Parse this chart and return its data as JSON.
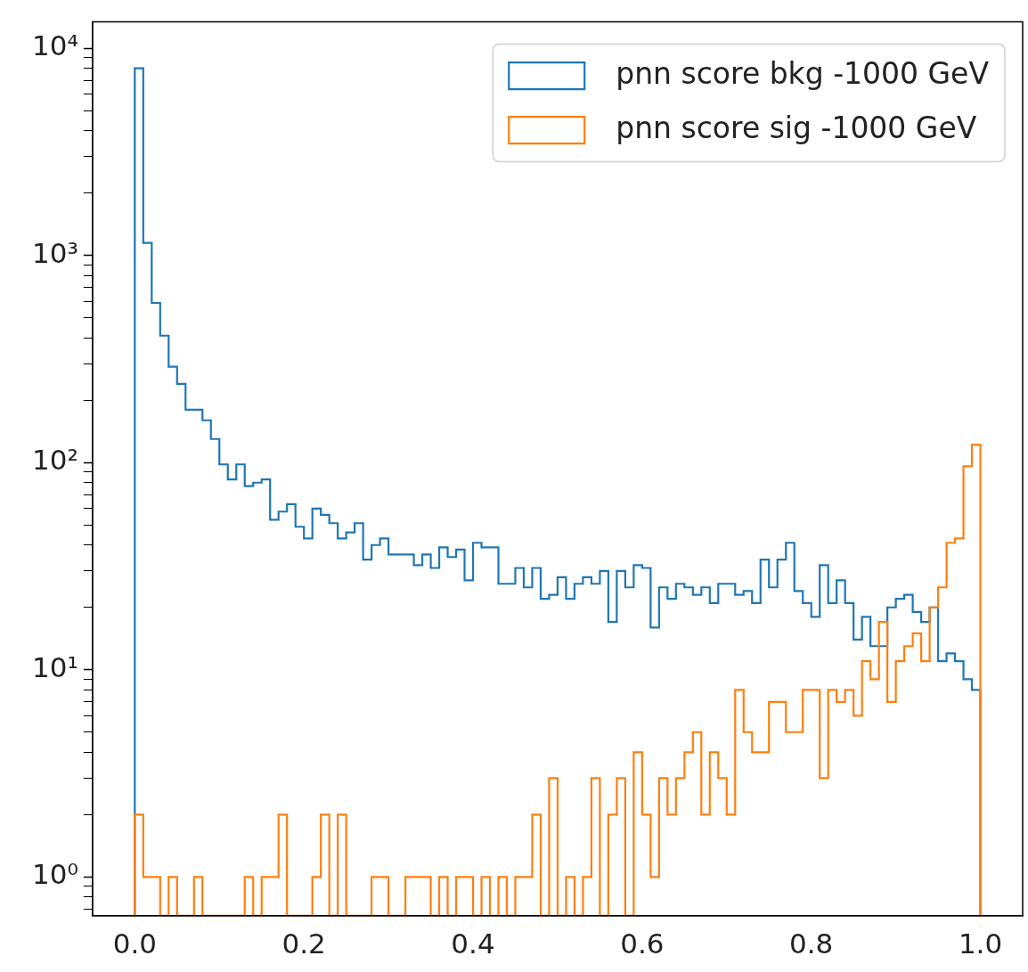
{
  "chart_data": {
    "type": "histogram",
    "bins": [
      0,
      0.01,
      0.02,
      0.03,
      0.04,
      0.05,
      0.06,
      0.07,
      0.08,
      0.09,
      0.1,
      0.11,
      0.12,
      0.13,
      0.14,
      0.15,
      0.16,
      0.17,
      0.18,
      0.19,
      0.2,
      0.21,
      0.22,
      0.23,
      0.24,
      0.25,
      0.26,
      0.27,
      0.28,
      0.29,
      0.3,
      0.31,
      0.32,
      0.33,
      0.34,
      0.35,
      0.36,
      0.37,
      0.38,
      0.39,
      0.4,
      0.41,
      0.42,
      0.43,
      0.44,
      0.45,
      0.46,
      0.47,
      0.48,
      0.49,
      0.5,
      0.51,
      0.52,
      0.53,
      0.54,
      0.55,
      0.56,
      0.57,
      0.58,
      0.59,
      0.6,
      0.61,
      0.62,
      0.63,
      0.64,
      0.65,
      0.66,
      0.67,
      0.68,
      0.69,
      0.7,
      0.71,
      0.72,
      0.73,
      0.74,
      0.75,
      0.76,
      0.77,
      0.78,
      0.79,
      0.8,
      0.81,
      0.82,
      0.83,
      0.84,
      0.85,
      0.86,
      0.87,
      0.88,
      0.89,
      0.9,
      0.91,
      0.92,
      0.93,
      0.94,
      0.95,
      0.96,
      0.97,
      0.98,
      0.99,
      1
    ],
    "series": [
      {
        "name": "pnn score bkg -1000 GeV",
        "color": "#1f77b4",
        "values": [
          8000,
          1150,
          590,
          410,
          290,
          240,
          180,
          180,
          160,
          130,
          98,
          83,
          98,
          77,
          80,
          83,
          53,
          58,
          63,
          49,
          43,
          60,
          56,
          51,
          43,
          46,
          51,
          34,
          40,
          43,
          36,
          36,
          36,
          32,
          36,
          31,
          39,
          35,
          38,
          27,
          41,
          39,
          39,
          26,
          26,
          31,
          25,
          31,
          22,
          23,
          28,
          22,
          26,
          28,
          26,
          30,
          17,
          30,
          25,
          32,
          31,
          16,
          25,
          22,
          26,
          25,
          23,
          25,
          21,
          26,
          26,
          23,
          24,
          21,
          34,
          25,
          34,
          41,
          24,
          21,
          18,
          32,
          21,
          27,
          21,
          14,
          18,
          13,
          13,
          20,
          22,
          23,
          19,
          17,
          20,
          11,
          12,
          11,
          9,
          8
        ]
      },
      {
        "name": "pnn score sig -1000 GeV",
        "color": "#ff7f0e",
        "values": [
          2,
          1,
          1,
          null,
          1,
          null,
          null,
          1,
          null,
          null,
          null,
          null,
          null,
          1,
          null,
          1,
          1,
          2,
          null,
          null,
          null,
          1,
          2,
          null,
          2,
          null,
          null,
          null,
          1,
          1,
          null,
          null,
          1,
          1,
          1,
          null,
          1,
          null,
          1,
          1,
          null,
          1,
          null,
          1,
          null,
          1,
          1,
          2,
          null,
          3,
          null,
          1,
          null,
          1,
          3,
          null,
          2,
          3,
          null,
          4,
          2,
          1,
          3,
          2,
          3,
          4,
          5,
          2,
          4,
          3,
          2,
          8,
          5,
          4,
          4,
          7,
          7,
          5,
          5,
          8,
          8,
          3,
          8,
          7,
          8,
          6,
          11,
          9,
          17,
          7,
          11,
          13,
          15,
          11,
          20,
          25,
          41,
          43,
          96,
          122
        ]
      }
    ],
    "log": "y",
    "legend": "top right",
    "xlim": [
      -0.05,
      1.05
    ],
    "xticks": [
      {
        "value": 0,
        "label": "0.0"
      },
      {
        "value": 0.2,
        "label": "0.2"
      },
      {
        "value": 0.4,
        "label": "0.4"
      },
      {
        "value": 0.6,
        "label": "0.6"
      },
      {
        "value": 0.8,
        "label": "0.8"
      },
      {
        "value": 1,
        "label": "1.0"
      }
    ],
    "ylim": [
      0.65,
      13400
    ],
    "yticks": [
      {
        "value": 0.7,
        "label": null
      },
      {
        "value": 0.8,
        "label": null
      },
      {
        "value": 0.9,
        "label": null
      },
      {
        "value": 1,
        "label": "10⁰"
      },
      {
        "value": 2,
        "label": null
      },
      {
        "value": 3,
        "label": null
      },
      {
        "value": 4,
        "label": null
      },
      {
        "value": 5,
        "label": null
      },
      {
        "value": 6,
        "label": null
      },
      {
        "value": 7,
        "label": null
      },
      {
        "value": 8,
        "label": null
      },
      {
        "value": 9,
        "label": null
      },
      {
        "value": 10,
        "label": "10¹"
      },
      {
        "value": 20,
        "label": null
      },
      {
        "value": 30,
        "label": null
      },
      {
        "value": 40,
        "label": null
      },
      {
        "value": 50,
        "label": null
      },
      {
        "value": 60,
        "label": null
      },
      {
        "value": 70,
        "label": null
      },
      {
        "value": 80,
        "label": null
      },
      {
        "value": 90,
        "label": null
      },
      {
        "value": 100,
        "label": "10²"
      },
      {
        "value": 200,
        "label": null
      },
      {
        "value": 300,
        "label": null
      },
      {
        "value": 400,
        "label": null
      },
      {
        "value": 500,
        "label": null
      },
      {
        "value": 600,
        "label": null
      },
      {
        "value": 700,
        "label": null
      },
      {
        "value": 800,
        "label": null
      },
      {
        "value": 900,
        "label": null
      },
      {
        "value": 1000,
        "label": "10³"
      },
      {
        "value": 2000,
        "label": null
      },
      {
        "value": 3000,
        "label": null
      },
      {
        "value": 4000,
        "label": null
      },
      {
        "value": 5000,
        "label": null
      },
      {
        "value": 6000,
        "label": null
      },
      {
        "value": 7000,
        "label": null
      },
      {
        "value": 8000,
        "label": null
      },
      {
        "value": 9000,
        "label": null
      },
      {
        "value": 10000,
        "label": "10⁴"
      }
    ]
  }
}
